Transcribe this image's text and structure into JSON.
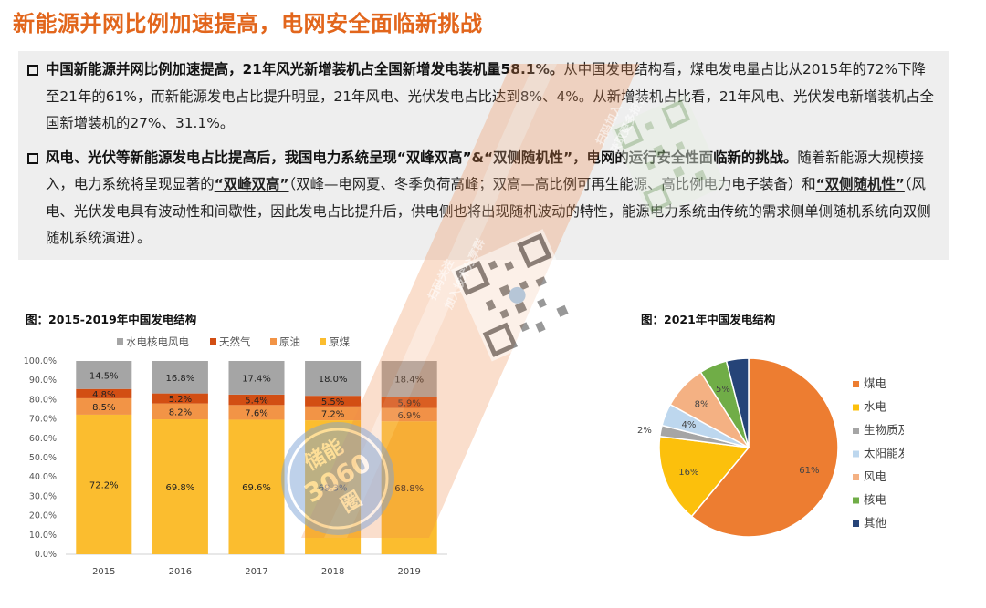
{
  "page": {
    "title": "新能源并网比例加速提高，电网安全面临新挑战"
  },
  "bullets": [
    {
      "bold": "中国新能源并网比例加速提高，21年风光新增装机占全国新增发电装机量58.1%。",
      "rest": "从中国发电结构看，煤电发电量占比从2015年的72%下降至21年的61%，而新能源发电占比提升明显，21年风电、光伏发电占比达到8%、4%。从新增装机占比看，21年风电、光伏发电新增装机占全国新增装机的27%、31.1%。"
    },
    {
      "bold": "风电、光伏等新能源发电占比提高后，我国电力系统呈现“双峰双高”&“双侧随机性”，电网的运行安全性面临新的挑战。",
      "rest_a": "随着新能源大规模接入，电力系统将呈现显著的",
      "term_a": "“双峰双高”",
      "rest_b": "（双峰—电网夏、冬季负荷高峰；双高—高比例可再生能源、高比例电力电子装备）和",
      "term_b": "“双侧随机性”",
      "rest_c": "（风电、光伏发电具有波动性和间歇性，因此发电占比提升后，供电侧也将出现随机波动的特性，能源电力系统由传统的需求侧单侧随机系统向双侧随机系统演进）。"
    }
  ],
  "chart_data": [
    {
      "type": "bar",
      "stacked": true,
      "title": "图：2015-2019年中国发电结构",
      "categories": [
        "2015",
        "2016",
        "2017",
        "2018",
        "2019"
      ],
      "ylim": [
        0,
        100
      ],
      "yticks": [
        "0.0%",
        "10.0%",
        "20.0%",
        "30.0%",
        "40.0%",
        "50.0%",
        "60.0%",
        "70.0%",
        "80.0%",
        "90.0%",
        "100.0%"
      ],
      "legend_position": "top",
      "series": [
        {
          "name": "原煤",
          "color": "#fbbd2f",
          "values": [
            72.2,
            69.8,
            69.6,
            69.3,
            68.8
          ],
          "labels": [
            "72.2%",
            "69.8%",
            "69.6%",
            "69.3%",
            "68.8%"
          ]
        },
        {
          "name": "原油",
          "color": "#f29446",
          "values": [
            8.5,
            8.2,
            7.6,
            7.2,
            6.9
          ],
          "labels": [
            "8.5%",
            "8.2%",
            "7.6%",
            "7.2%",
            "6.9%"
          ]
        },
        {
          "name": "天然气",
          "color": "#d24e13",
          "values": [
            4.8,
            5.2,
            5.4,
            5.5,
            5.9
          ],
          "labels": [
            "4.8%",
            "5.2%",
            "5.4%",
            "5.5%",
            "5.9%"
          ]
        },
        {
          "name": "水电核电风电",
          "color": "#a5a5a5",
          "values": [
            14.5,
            16.8,
            17.4,
            18.0,
            18.4
          ],
          "labels": [
            "14.5%",
            "16.8%",
            "17.4%",
            "18.0%",
            "18.4%"
          ]
        }
      ],
      "legend_order": [
        "水电核电风电",
        "天然气",
        "原油",
        "原煤"
      ]
    },
    {
      "type": "pie",
      "title": "图：2021年中国发电结构",
      "legend_position": "right",
      "slices": [
        {
          "name": "煤电",
          "value": 61,
          "label": "61%",
          "color": "#ed7d31"
        },
        {
          "name": "水电",
          "value": 16,
          "label": "16%",
          "color": "#fcc00c"
        },
        {
          "name": "生物质及其他",
          "value": 2,
          "label": "2%",
          "color": "#a5a5a5"
        },
        {
          "name": "太阳能发电",
          "value": 4,
          "label": "4%",
          "color": "#bdd7ee"
        },
        {
          "name": "风电",
          "value": 8,
          "label": "8%",
          "color": "#f4b183"
        },
        {
          "name": "核电",
          "value": 5,
          "label": "5%",
          "color": "#70ad47"
        },
        {
          "name": "其他",
          "value": 4,
          "label": "",
          "color": "#264478"
        }
      ]
    }
  ],
  "watermark": {
    "badge_lines": [
      "储能",
      "3060",
      "圈"
    ],
    "qr_caption_1": "扫码关注",
    "qr_caption_2": "加入技术分享群",
    "qr_caption_3": "扫码加入",
    "qr_caption_4": "获取更多报告"
  }
}
